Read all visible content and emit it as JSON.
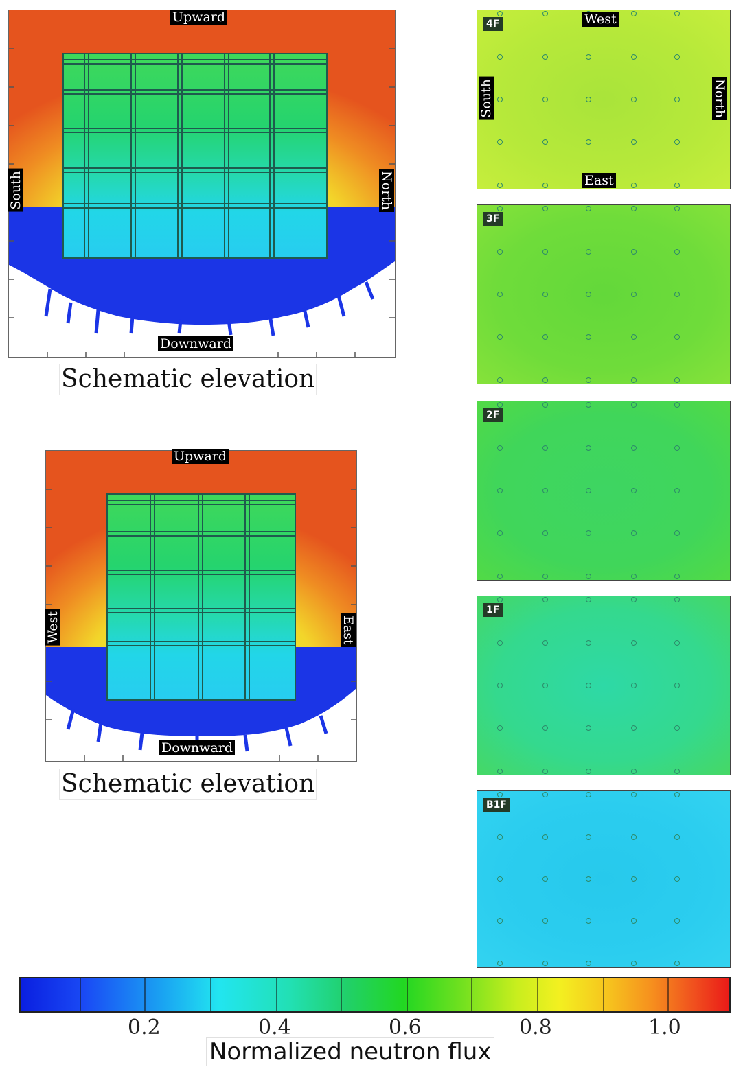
{
  "elevation_top": {
    "labels": {
      "upward": "Upward",
      "downward": "Downward",
      "left": "South",
      "right": "North"
    },
    "caption": "Schematic elevation"
  },
  "elevation_bottom": {
    "labels": {
      "upward": "Upward",
      "downward": "Downward",
      "left": "West",
      "right": "East"
    },
    "caption": "Schematic elevation"
  },
  "floor_plans": [
    {
      "tag": "4F",
      "level": 0.78
    },
    {
      "tag": "3F",
      "level": 0.66
    },
    {
      "tag": "2F",
      "level": 0.58
    },
    {
      "tag": "1F",
      "level": 0.52
    },
    {
      "tag": "B1F",
      "level": 0.3
    }
  ],
  "floor_4f_labels": {
    "top": "West",
    "bottom": "East",
    "left": "South",
    "right": "North"
  },
  "colorbar": {
    "title": "Normalized neutron flux",
    "ticks": [
      "0.2",
      "0.4",
      "0.6",
      "0.8",
      "1.0"
    ]
  },
  "colors": {
    "sky_top": "#e8561f",
    "sky_mid": "#f3e52a",
    "ground": "#1b35e6",
    "building_grid": "#1f5a4e"
  }
}
